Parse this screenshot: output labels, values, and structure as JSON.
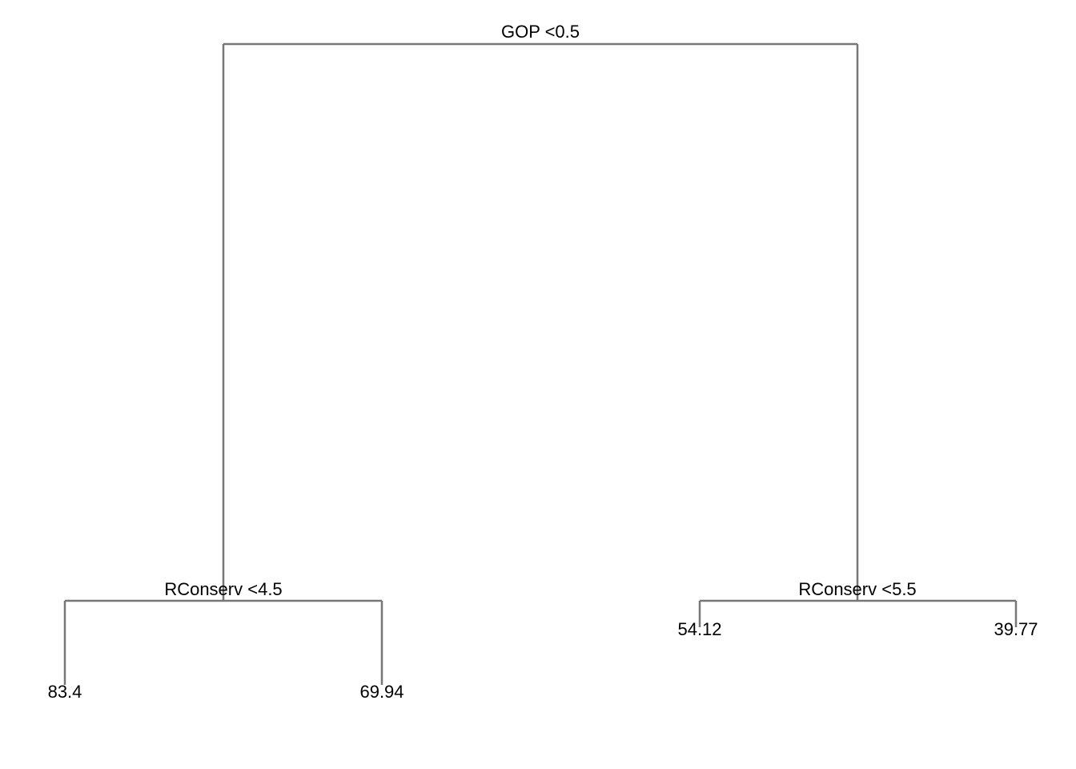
{
  "tree": {
    "root": {
      "split_label": "GOP <0.5",
      "left": {
        "split_label": "RConserv <4.5",
        "left_leaf": "83.4",
        "right_leaf": "69.94"
      },
      "right": {
        "split_label": "RConserv <5.5",
        "left_leaf": "54.12",
        "right_leaf": "39.77"
      }
    }
  }
}
